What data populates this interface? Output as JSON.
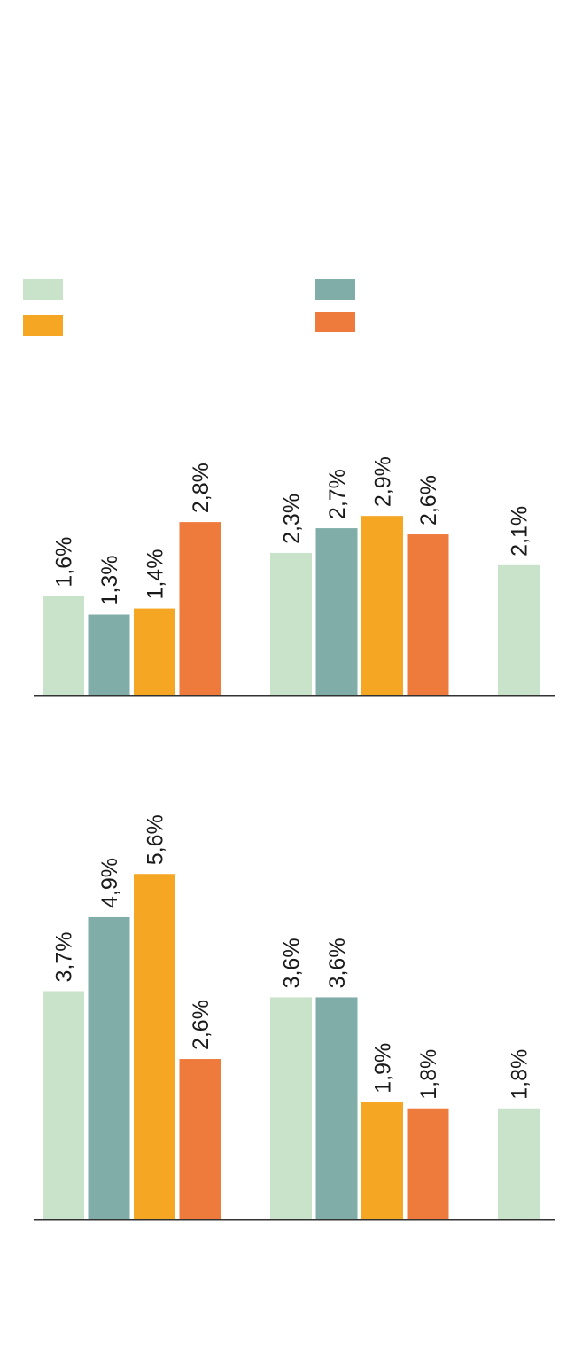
{
  "legend": {
    "placement": "top",
    "items": [
      {
        "series_index": 0,
        "label": ""
      },
      {
        "series_index": 1,
        "label": ""
      },
      {
        "series_index": 2,
        "label": ""
      },
      {
        "series_index": 3,
        "label": ""
      }
    ]
  },
  "colors": {
    "series": [
      "#c9e3cb",
      "#80ada8",
      "#f5a623",
      "#ee7a3b"
    ],
    "axis": "#333333",
    "label": "#1a1a1a"
  },
  "chart_data": [
    {
      "type": "bar",
      "title": "",
      "xlabel": "",
      "ylabel": "",
      "label_suffix": "%",
      "decimal_separator": ",",
      "ylim": [
        0,
        5.6
      ],
      "grid": false,
      "groups": [
        {
          "values": [
            1.6,
            1.3,
            1.4,
            2.8
          ],
          "labels": [
            "1,6%",
            "1,3%",
            "1,4%",
            "2,8%"
          ]
        },
        {
          "values": [
            2.3,
            2.7,
            2.9,
            2.6
          ],
          "labels": [
            "2,3%",
            "2,7%",
            "2,9%",
            "2,6%"
          ]
        },
        {
          "values": [
            2.1
          ],
          "labels": [
            "2,1%"
          ]
        }
      ]
    },
    {
      "type": "bar",
      "title": "",
      "xlabel": "",
      "ylabel": "",
      "label_suffix": "%",
      "decimal_separator": ",",
      "ylim": [
        0,
        5.6
      ],
      "grid": false,
      "groups": [
        {
          "values": [
            3.7,
            4.9,
            5.6,
            2.6
          ],
          "labels": [
            "3,7%",
            "4,9%",
            "5,6%",
            "2,6%"
          ]
        },
        {
          "values": [
            3.6,
            3.6,
            1.9,
            1.8
          ],
          "labels": [
            "3,6%",
            "3,6%",
            "1,9%",
            "1,8%"
          ]
        },
        {
          "values": [
            1.8
          ],
          "labels": [
            "1,8%"
          ]
        }
      ]
    }
  ]
}
